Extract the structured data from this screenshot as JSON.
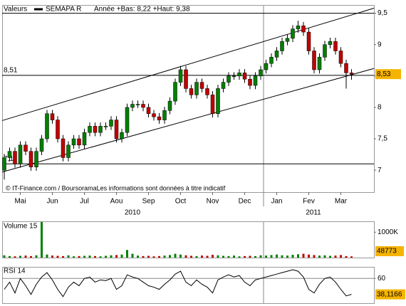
{
  "chart_data": [
    {
      "type": "candlestick",
      "title": "Valeurs",
      "series_name": "SEMAPA R",
      "subtitle": "Année +Bas: 8,22 +Haut: 9,38",
      "source": "© IT-Finance.com / BoursoramaLes informations sont données à titre indicatif",
      "year_labels": [
        "2010",
        "2011"
      ],
      "up_color": "#008000",
      "down_color": "#c00000",
      "categories": [
        null,
        null,
        null,
        "Mai",
        null,
        null,
        null,
        null,
        null,
        "Jun",
        null,
        null,
        null,
        null,
        null,
        "Jul",
        null,
        null,
        null,
        null,
        null,
        "Aou",
        null,
        null,
        null,
        null,
        null,
        "Sep",
        null,
        null,
        null,
        null,
        null,
        "Oct",
        null,
        null,
        null,
        null,
        null,
        "Nov",
        null,
        null,
        null,
        null,
        null,
        "Dec",
        null,
        null,
        null,
        null,
        null,
        "Jan",
        null,
        null,
        null,
        null,
        null,
        "Fev",
        null,
        null,
        null,
        null,
        null,
        "Mar",
        null,
        null
      ],
      "open": [
        7.0,
        7.2,
        7.3,
        7.1,
        7.4,
        7.3,
        7.05,
        7.3,
        7.5,
        7.9,
        7.8,
        7.5,
        7.2,
        7.4,
        7.5,
        7.4,
        7.6,
        7.7,
        7.6,
        7.7,
        7.7,
        7.8,
        7.5,
        7.6,
        8.0,
        8.05,
        8.05,
        8.0,
        7.9,
        7.85,
        7.8,
        7.95,
        8.1,
        8.4,
        8.6,
        8.3,
        8.2,
        8.4,
        8.3,
        8.2,
        7.9,
        8.3,
        8.4,
        8.5,
        8.5,
        8.55,
        8.45,
        8.35,
        8.5,
        8.6,
        8.7,
        8.8,
        8.9,
        9.05,
        9.1,
        9.25,
        9.3,
        9.2,
        8.9,
        8.6,
        8.8,
        9.0,
        9.05,
        8.9,
        8.7,
        8.55
      ],
      "high": [
        7.26,
        7.36,
        7.36,
        7.46,
        7.46,
        7.36,
        7.36,
        7.56,
        7.96,
        7.96,
        7.86,
        7.56,
        7.46,
        7.56,
        7.56,
        7.66,
        7.76,
        7.76,
        7.76,
        7.76,
        7.86,
        7.86,
        7.66,
        8.06,
        8.11,
        8.11,
        8.11,
        8.06,
        7.96,
        7.91,
        8.01,
        8.16,
        8.46,
        8.66,
        8.66,
        8.36,
        8.46,
        8.46,
        8.36,
        8.26,
        8.36,
        8.46,
        8.56,
        8.56,
        8.61,
        8.61,
        8.51,
        8.56,
        8.66,
        8.76,
        8.86,
        8.96,
        9.11,
        9.16,
        9.31,
        9.38,
        9.36,
        9.26,
        8.96,
        8.86,
        9.06,
        9.11,
        9.11,
        8.96,
        8.76,
        8.61
      ],
      "low": [
        6.85,
        7.14,
        7.04,
        7.04,
        7.24,
        6.99,
        6.99,
        7.24,
        7.44,
        7.74,
        7.44,
        7.14,
        7.14,
        7.34,
        7.34,
        7.34,
        7.54,
        7.54,
        7.54,
        7.64,
        7.64,
        7.44,
        7.44,
        7.54,
        7.94,
        7.99,
        7.94,
        7.84,
        7.79,
        7.74,
        7.74,
        7.89,
        8.04,
        8.34,
        8.24,
        8.14,
        8.14,
        8.24,
        8.14,
        7.84,
        7.84,
        8.24,
        8.34,
        8.44,
        8.44,
        8.39,
        8.29,
        8.29,
        8.44,
        8.54,
        8.64,
        8.74,
        8.84,
        8.99,
        9.04,
        9.19,
        9.14,
        8.84,
        8.54,
        8.54,
        8.74,
        8.94,
        8.84,
        8.64,
        8.3,
        8.44
      ],
      "close": [
        7.2,
        7.3,
        7.1,
        7.4,
        7.3,
        7.05,
        7.3,
        7.5,
        7.9,
        7.8,
        7.5,
        7.2,
        7.4,
        7.5,
        7.4,
        7.6,
        7.7,
        7.6,
        7.7,
        7.7,
        7.8,
        7.5,
        7.6,
        8.0,
        8.05,
        8.05,
        8.0,
        7.9,
        7.85,
        7.8,
        7.95,
        8.1,
        8.4,
        8.6,
        8.3,
        8.2,
        8.4,
        8.3,
        8.2,
        7.9,
        8.3,
        8.4,
        8.5,
        8.5,
        8.55,
        8.45,
        8.35,
        8.5,
        8.6,
        8.7,
        8.8,
        8.9,
        9.05,
        9.1,
        9.25,
        9.3,
        9.2,
        8.9,
        8.6,
        8.8,
        9.0,
        9.05,
        8.9,
        8.7,
        8.55,
        8.53
      ],
      "ylim": [
        6.65,
        9.62
      ],
      "yticks": [
        7,
        {
          "value": 7.5,
          "label": "7,5"
        },
        8,
        {
          "value": 8.5,
          "label": "8,5"
        },
        9,
        {
          "value": 9.5,
          "label": "9,5"
        }
      ],
      "levels": [
        {
          "value": 9.5
        },
        {
          "value": 8.51,
          "label": "8,51"
        },
        {
          "value": 7.1,
          "label": "7,1"
        }
      ],
      "channels": [
        {
          "start": 7.79,
          "end": 9.58
        },
        {
          "start": 6.97,
          "end": 8.62
        }
      ],
      "last": {
        "value": 8.53,
        "label": "8,53"
      }
    },
    {
      "type": "bar",
      "title": "Volume 15",
      "values": [
        90000,
        60000,
        50000,
        70000,
        80000,
        60000,
        90000,
        1400000,
        120000,
        80000,
        70000,
        60000,
        90000,
        50000,
        60000,
        70000,
        80000,
        60000,
        50000,
        70000,
        90000,
        100000,
        120000,
        300000,
        150000,
        80000,
        60000,
        70000,
        50000,
        60000,
        80000,
        100000,
        150000,
        120000,
        90000,
        70000,
        60000,
        80000,
        70000,
        110000,
        90000,
        70000,
        60000,
        80000,
        50000,
        60000,
        70000,
        60000,
        90000,
        80000,
        100000,
        120000,
        90000,
        80000,
        110000,
        130000,
        150000,
        120000,
        100000,
        80000,
        90000,
        70000,
        80000,
        100000,
        60000,
        48773
      ],
      "ylim": [
        0,
        1400000
      ],
      "yticks": [
        {
          "value": 1000000,
          "label": "1000K"
        }
      ]
    },
    {
      "type": "line",
      "title": "RSI 14",
      "color": "#000000",
      "values": [
        45,
        55,
        40,
        60,
        50,
        38,
        52,
        62,
        68,
        58,
        45,
        35,
        48,
        55,
        50,
        60,
        62,
        55,
        58,
        57,
        60,
        45,
        50,
        65,
        62,
        60,
        55,
        50,
        48,
        45,
        52,
        58,
        66,
        70,
        55,
        50,
        58,
        52,
        48,
        40,
        58,
        62,
        65,
        62,
        64,
        55,
        50,
        58,
        60,
        62,
        64,
        66,
        68,
        70,
        72,
        70,
        62,
        45,
        40,
        52,
        60,
        62,
        55,
        45,
        36,
        38.1166
      ],
      "ylim": [
        26,
        75
      ],
      "yticks": [
        60
      ],
      "last": {
        "value": 38.1166,
        "label": "38,1166"
      }
    }
  ]
}
